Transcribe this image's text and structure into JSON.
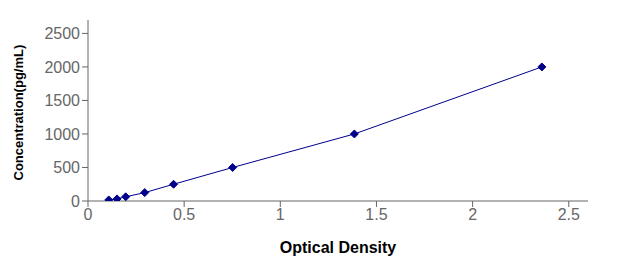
{
  "chart_data": {
    "type": "line",
    "xlabel": "Optical Density",
    "ylabel": "Concentration(pg/mL)",
    "x": [
      0.108,
      0.151,
      0.196,
      0.295,
      0.445,
      0.752,
      1.385,
      2.36
    ],
    "values": [
      15.6,
      31.25,
      62.5,
      125,
      250,
      500,
      1000,
      2000
    ],
    "color": "#00008B",
    "marker": "diamond",
    "line_style": "solid",
    "xlim": [
      0,
      2.6
    ],
    "ylim": [
      0,
      2700
    ],
    "xticks": [
      0,
      0.5,
      1,
      1.5,
      2,
      2.5
    ],
    "yticks": [
      0,
      500,
      1000,
      1500,
      2000,
      2500
    ],
    "grid": false
  }
}
